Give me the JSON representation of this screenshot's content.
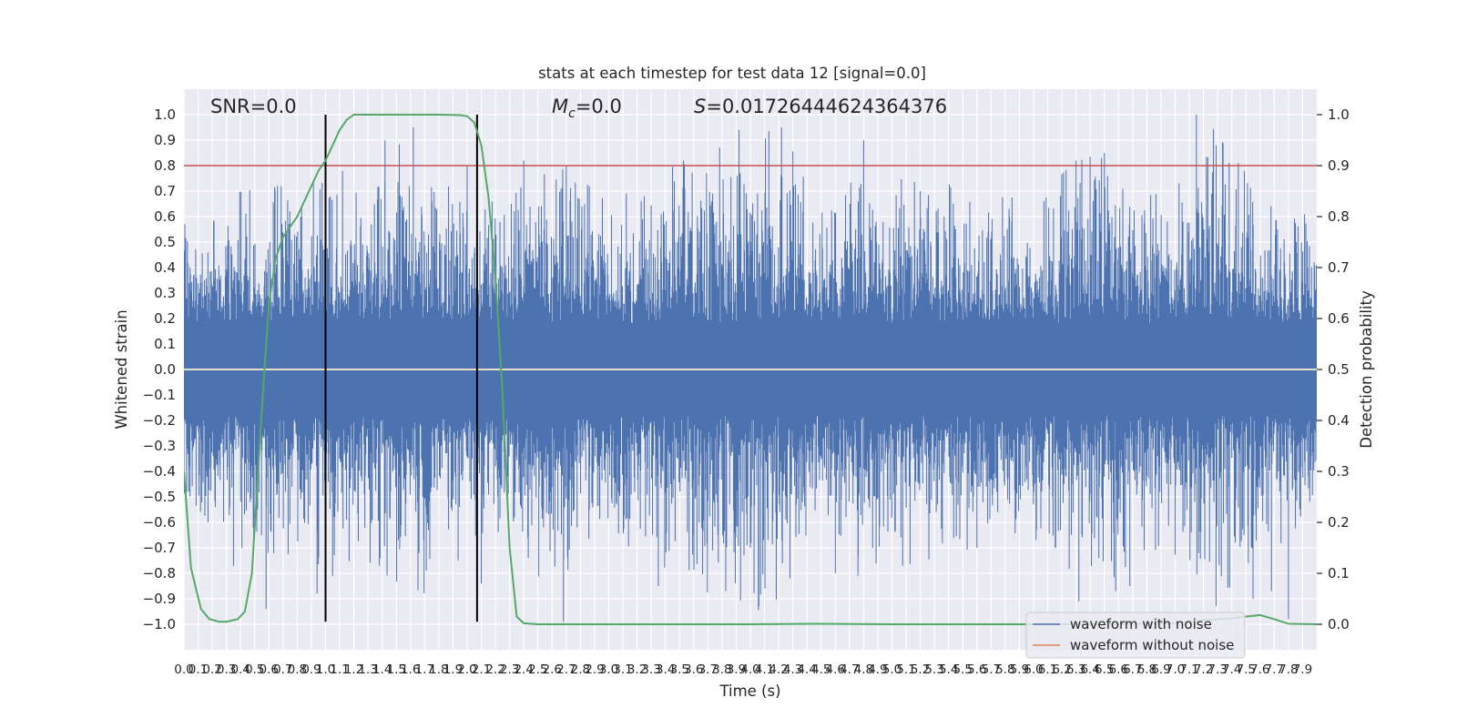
{
  "chart_data": {
    "type": "line",
    "title": "stats at each timestep for test data 12 [signal=0.0]",
    "xlabel": "Time (s)",
    "ylabel_left": "Whitened strain",
    "ylabel_right": "Detection probability",
    "xlim": [
      0.0,
      8.0
    ],
    "ylim_left": [
      -1.1,
      1.1
    ],
    "ylim_right": [
      -0.05,
      1.05
    ],
    "grid": true,
    "legend_position": "lower-right",
    "annotations": {
      "snr": "SNR=0.0",
      "mc_symbol": "M",
      "mc_sub": "c",
      "mc_value": "=0.0",
      "s_symbol": "S",
      "s_value": "=0.01726444624364376"
    },
    "colors": {
      "noise": "#4c72b0",
      "clean": "#dd8452",
      "prob": "#55a868",
      "threshold": "#c44e52",
      "window": "#000000",
      "zero": "#fff0d0",
      "background": "#eaeaf2"
    },
    "left_ticks": [
      -1.0,
      -0.9,
      -0.8,
      -0.7,
      -0.6,
      -0.5,
      -0.4,
      -0.3,
      -0.2,
      -0.1,
      0.0,
      0.1,
      0.2,
      0.3,
      0.4,
      0.5,
      0.6,
      0.7,
      0.8,
      0.9,
      1.0
    ],
    "left_tick_labels": [
      "−1.0",
      "−0.9",
      "−0.8",
      "−0.7",
      "−0.6",
      "−0.5",
      "−0.4",
      "−0.3",
      "−0.2",
      "−0.1",
      "0.0",
      "0.1",
      "0.2",
      "0.3",
      "0.4",
      "0.5",
      "0.6",
      "0.7",
      "0.8",
      "0.9",
      "1.0"
    ],
    "right_ticks": [
      0.0,
      0.1,
      0.2,
      0.3,
      0.4,
      0.5,
      0.6,
      0.7,
      0.8,
      0.9,
      1.0
    ],
    "right_tick_labels": [
      "0.0",
      "0.1",
      "0.2",
      "0.3",
      "0.4",
      "0.5",
      "0.6",
      "0.7",
      "0.8",
      "0.9",
      "1.0"
    ],
    "x_tick_step": 0.1,
    "threshold_strain": 0.8,
    "window_lines_x": [
      1.0,
      2.07
    ],
    "window_lines_strain": [
      -0.99,
      1.0
    ],
    "envelope_points": [
      [
        0.0,
        0.62
      ],
      [
        0.1,
        0.55
      ],
      [
        0.2,
        0.6
      ],
      [
        0.4,
        0.7
      ],
      [
        0.6,
        0.72
      ],
      [
        0.9,
        0.73
      ],
      [
        1.0,
        0.8
      ],
      [
        1.3,
        0.75
      ],
      [
        1.6,
        0.95
      ],
      [
        1.8,
        0.8
      ],
      [
        2.2,
        0.65
      ],
      [
        2.4,
        0.82
      ],
      [
        2.7,
        0.8
      ],
      [
        3.0,
        0.65
      ],
      [
        3.9,
        0.94
      ],
      [
        4.2,
        0.95
      ],
      [
        4.5,
        0.7
      ],
      [
        5.0,
        0.78
      ],
      [
        5.6,
        0.7
      ],
      [
        6.0,
        0.66
      ],
      [
        6.3,
        0.82
      ],
      [
        6.5,
        0.85
      ],
      [
        6.8,
        0.7
      ],
      [
        7.1,
        0.74
      ],
      [
        7.2,
        1.0
      ],
      [
        7.35,
        0.88
      ],
      [
        7.6,
        0.7
      ],
      [
        8.0,
        0.65
      ]
    ],
    "spikes": [
      {
        "x": 0.17,
        "y": -0.6
      },
      {
        "x": 0.35,
        "y": -0.77
      },
      {
        "x": 0.58,
        "y": -0.94
      },
      {
        "x": 0.66,
        "y": 0.72
      },
      {
        "x": 0.94,
        "y": -0.88
      },
      {
        "x": 1.05,
        "y": -0.81
      },
      {
        "x": 1.12,
        "y": 0.78
      },
      {
        "x": 1.38,
        "y": -0.77
      },
      {
        "x": 1.42,
        "y": 0.9
      },
      {
        "x": 1.62,
        "y": 0.95
      },
      {
        "x": 1.66,
        "y": -0.72
      },
      {
        "x": 2.0,
        "y": 0.8
      },
      {
        "x": 2.1,
        "y": -0.84
      },
      {
        "x": 2.4,
        "y": 0.82
      },
      {
        "x": 2.68,
        "y": -0.99
      },
      {
        "x": 2.7,
        "y": 0.8
      },
      {
        "x": 3.35,
        "y": -0.85
      },
      {
        "x": 3.6,
        "y": -0.65
      },
      {
        "x": 3.92,
        "y": 0.94
      },
      {
        "x": 4.0,
        "y": -0.7
      },
      {
        "x": 4.22,
        "y": 0.95
      },
      {
        "x": 4.28,
        "y": -0.82
      },
      {
        "x": 4.6,
        "y": -0.8
      },
      {
        "x": 4.76,
        "y": -0.81
      },
      {
        "x": 4.8,
        "y": 0.9
      },
      {
        "x": 5.2,
        "y": 0.7
      },
      {
        "x": 5.6,
        "y": -0.7
      },
      {
        "x": 6.3,
        "y": 0.82
      },
      {
        "x": 6.32,
        "y": -0.91
      },
      {
        "x": 6.48,
        "y": 0.83
      },
      {
        "x": 6.5,
        "y": 0.85
      },
      {
        "x": 6.58,
        "y": -0.87
      },
      {
        "x": 6.68,
        "y": -0.85
      },
      {
        "x": 7.15,
        "y": 1.0
      },
      {
        "x": 7.29,
        "y": 0.88
      },
      {
        "x": 7.55,
        "y": -0.9
      },
      {
        "x": 7.68,
        "y": -0.87
      },
      {
        "x": 7.8,
        "y": -0.98
      }
    ],
    "series": [
      {
        "name": "waveform with noise",
        "color": "#4c72b0",
        "note": "dense whitened noise ~8000 samples, |values| up to ~1.0"
      },
      {
        "name": "waveform without noise",
        "color": "#dd8452",
        "note": "flat at 0.0 (signal=0.0)"
      },
      {
        "name": "detection probability",
        "color": "#55a868",
        "axis": "right",
        "x": [
          0.0,
          0.05,
          0.12,
          0.18,
          0.25,
          0.3,
          0.38,
          0.43,
          0.48,
          0.55,
          0.6,
          0.65,
          0.7,
          0.75,
          0.8,
          0.85,
          0.9,
          0.95,
          1.0,
          1.05,
          1.1,
          1.15,
          1.2,
          1.3,
          1.6,
          1.8,
          1.95,
          2.0,
          2.05,
          2.1,
          2.15,
          2.2,
          2.25,
          2.3,
          2.35,
          2.4,
          2.5,
          3.0,
          3.5,
          4.0,
          4.5,
          5.0,
          5.5,
          6.0,
          6.5,
          7.0,
          7.2,
          7.4,
          7.6,
          7.7,
          7.8,
          8.0
        ],
        "y": [
          0.3,
          0.11,
          0.03,
          0.01,
          0.005,
          0.005,
          0.01,
          0.025,
          0.1,
          0.42,
          0.63,
          0.72,
          0.76,
          0.78,
          0.8,
          0.83,
          0.86,
          0.89,
          0.91,
          0.94,
          0.97,
          0.99,
          1.0,
          1.0,
          1.0,
          1.0,
          0.999,
          0.997,
          0.985,
          0.94,
          0.84,
          0.68,
          0.45,
          0.15,
          0.015,
          0.002,
          0.0,
          0.0,
          0.0,
          0.0,
          0.001,
          0.0,
          0.0,
          0.0,
          0.0,
          0.002,
          0.008,
          0.012,
          0.018,
          0.01,
          0.001,
          0.0
        ]
      }
    ]
  }
}
